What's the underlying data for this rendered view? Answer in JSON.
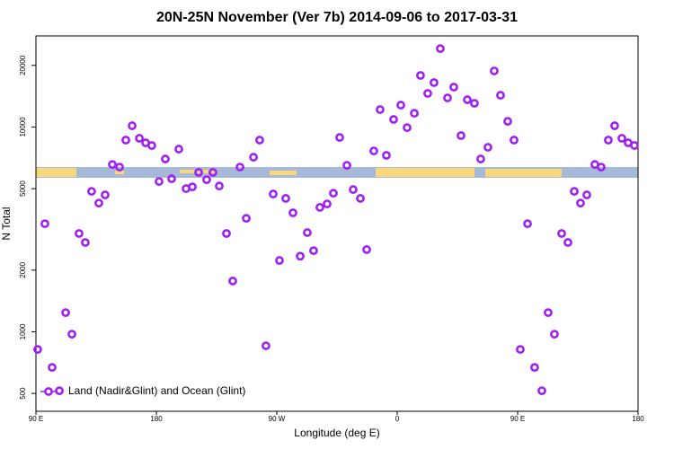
{
  "chart_data": {
    "type": "scatter",
    "title": "20N-25N November (Ver 7b)   2014-09-06 to 2017-03-31",
    "x_label": "Longitude (deg E)",
    "y_label": "N Total",
    "log_y": true,
    "legend": "bottom-left",
    "xlim": [
      90,
      540
    ],
    "ylim": [
      409,
      27850
    ],
    "xticks": [
      {
        "value": 90,
        "label": "90 E"
      },
      180,
      {
        "value": 270,
        "label": "90 W"
      },
      {
        "value": 360,
        "label": "0"
      },
      {
        "value": 450,
        "label": "90 E"
      },
      {
        "value": 540,
        "label": "180"
      }
    ],
    "yticks": [
      500,
      1000,
      2000,
      5000,
      10000,
      20000
    ],
    "series": [
      {
        "name": "Land (Nadir&Glint) and Ocean (Glint)",
        "color": "#a020f0",
        "x": [
          91.3,
          96.7,
          102.1,
          107.5,
          112.2,
          116.9,
          122.2,
          126.9,
          131.6,
          137,
          141.7,
          147.1,
          152.5,
          157.2,
          161.9,
          167.3,
          172,
          176.6,
          182,
          186.7,
          191.4,
          196.8,
          202.2,
          206.9,
          211.6,
          217.6,
          222.3,
          227,
          232.4,
          237.1,
          242.5,
          247.2,
          252.6,
          257.2,
          261.9,
          267.3,
          272,
          276.7,
          282.1,
          287.5,
          292.8,
          297.5,
          302.2,
          307.6,
          312.3,
          317,
          322.4,
          327.1,
          332.5,
          337.2,
          342.5,
          347.2,
          351.9,
          357.3,
          362.7,
          367.4,
          372.8,
          377.4,
          382.8,
          387.5,
          392.2,
          397.6,
          402.3,
          407.7,
          412.4,
          417.7,
          422.4,
          427.8,
          432.5,
          437.2,
          442.6,
          447.3,
          452,
          457.4,
          462.7,
          468.1,
          472.8,
          477.5,
          482.9,
          487.6,
          492.3,
          497,
          501.7,
          507.7,
          512.4,
          517.8,
          522.5,
          527.9,
          532.6,
          537.3
        ],
        "values": [
          820,
          3370,
          670,
          515,
          1240,
          973,
          3020,
          2730,
          4850,
          4250,
          4660,
          6560,
          6370,
          8630,
          10140,
          8810,
          8370,
          8120,
          5420,
          6980,
          5590,
          7800,
          5000,
          5100,
          6000,
          5530,
          6000,
          5150,
          3020,
          1770,
          6370,
          3580,
          7120,
          8630,
          854,
          4710,
          2230,
          4480,
          3810,
          2340,
          3050,
          2490,
          4050,
          4210,
          4750,
          8890,
          6500,
          4950,
          4480,
          2520,
          7640,
          12160,
          7270,
          10890,
          12790,
          9930,
          11670,
          17860,
          14590,
          16470,
          24150,
          13870,
          15660,
          9080,
          13590,
          13060,
          6980,
          7960,
          18790,
          14290,
          10660,
          8630,
          820,
          3370,
          670,
          515,
          1240,
          973,
          3020,
          2730,
          4850,
          4250,
          4660,
          6560,
          6370,
          8630,
          10140,
          8810,
          8370,
          8120
        ]
      }
    ]
  }
}
